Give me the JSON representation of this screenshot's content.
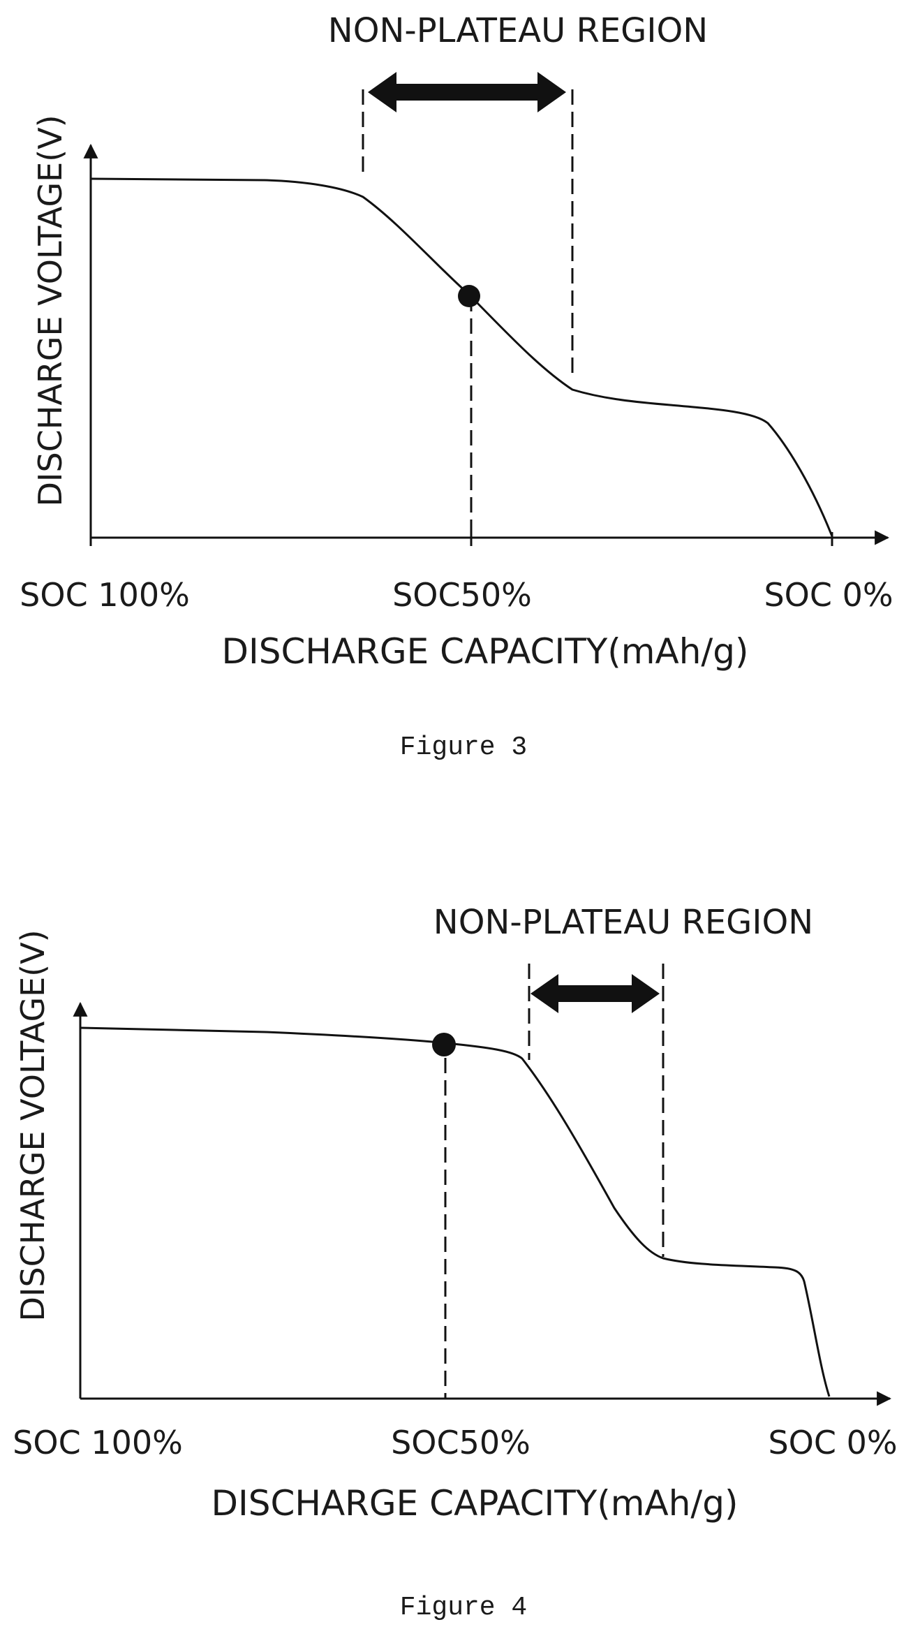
{
  "figures": [
    {
      "caption": "Figure 3",
      "region_label": "NON-PLATEAU REGION",
      "y_axis_label": "DISCHARGE VOLTAGE(V)",
      "x_axis_label": "DISCHARGE CAPACITY(mAh/g)",
      "x_ticks": [
        "SOC 100%",
        "SOC50%",
        "SOC 0%"
      ]
    },
    {
      "caption": "Figure 4",
      "region_label": "NON-PLATEAU REGION",
      "y_axis_label": "DISCHARGE VOLTAGE(V)",
      "x_axis_label": "DISCHARGE CAPACITY(mAh/g)",
      "x_ticks": [
        "SOC 100%",
        "SOC50%",
        "SOC 0%"
      ]
    }
  ]
}
